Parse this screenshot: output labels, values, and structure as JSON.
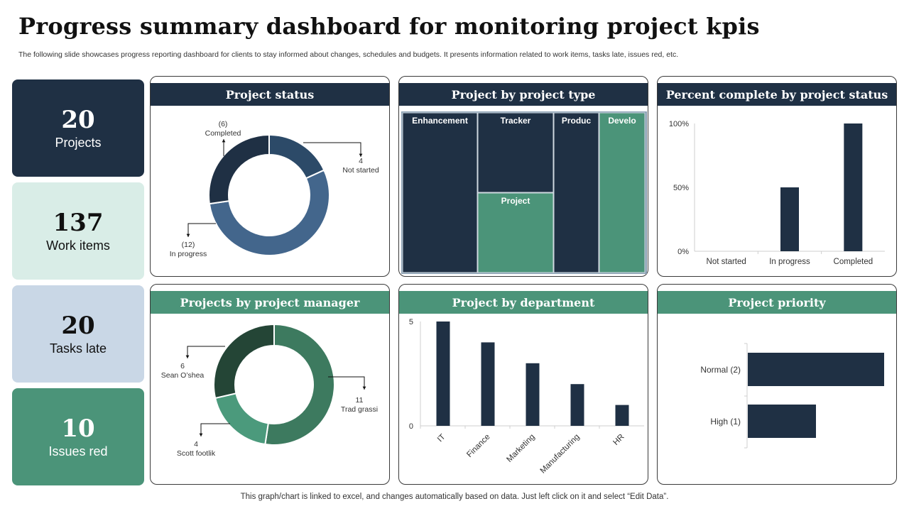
{
  "header": {
    "title": "Progress summary dashboard for monitoring project kpis",
    "subtitle": "The following slide showcases progress reporting dashboard for clients to stay informed about changes, schedules and budgets. It presents information related to work items, tasks late, issues red, etc."
  },
  "kpis": [
    {
      "value": "20",
      "label": "Projects"
    },
    {
      "value": "137",
      "label": "Work items"
    },
    {
      "value": "20",
      "label": "Tasks late"
    },
    {
      "value": "10",
      "label": "Issues red"
    }
  ],
  "footer": "This graph/chart is linked to excel,  and changes automatically based on data. Just left click on it and select “Edit Data”.",
  "colors": {
    "navy": "#1f3044",
    "green": "#4b9479",
    "slate_blue": "#43668c",
    "dark_green": "#244536",
    "mid_green": "#3d7a5f",
    "light_green": "#4b9a7c",
    "mint": "#d9ede7",
    "light_blue": "#c9d7e6"
  },
  "chart_data": [
    {
      "id": "project-status",
      "type": "pie",
      "title": "Project status",
      "slices": [
        {
          "count": "(6)",
          "label": "Completed",
          "value": 6
        },
        {
          "count": "4",
          "label": "Not started",
          "value": 4
        },
        {
          "count": "(12)",
          "label": "In progress",
          "value": 12
        }
      ]
    },
    {
      "id": "project-type",
      "type": "heatmap",
      "title": "Project by project type",
      "tiles": [
        {
          "label": "Enhancement"
        },
        {
          "label": "Tracker"
        },
        {
          "label": "Project"
        },
        {
          "label": "Produc"
        },
        {
          "label": "Develo"
        }
      ]
    },
    {
      "id": "percent-complete",
      "type": "bar",
      "title": "Percent complete by project status",
      "categories": [
        "Not started",
        "In progress",
        "Completed"
      ],
      "values": [
        0,
        50,
        100
      ],
      "ylim": [
        0,
        100
      ],
      "yticks": [
        "0%",
        "50%",
        "100%"
      ]
    },
    {
      "id": "project-manager",
      "type": "pie",
      "title": "Projects by project manager",
      "slices": [
        {
          "count": "6",
          "label": "Sean O’shea",
          "value": 6
        },
        {
          "count": "11",
          "label": "Trad grassi",
          "value": 11
        },
        {
          "count": "4",
          "label": "Scott footlik",
          "value": 4
        }
      ]
    },
    {
      "id": "department",
      "type": "bar",
      "title": "Project by department",
      "categories": [
        "IT",
        "Finance",
        "Marketing",
        "Manufacturing",
        "HR"
      ],
      "values": [
        5,
        4,
        3,
        2,
        1
      ],
      "ylim": [
        0,
        5
      ],
      "yticks": [
        "0",
        "5"
      ]
    },
    {
      "id": "priority",
      "type": "bar",
      "title": "Project priority",
      "categories": [
        "Normal (2)",
        "High (1)"
      ],
      "values": [
        2,
        1
      ],
      "orientation": "horizontal"
    }
  ]
}
